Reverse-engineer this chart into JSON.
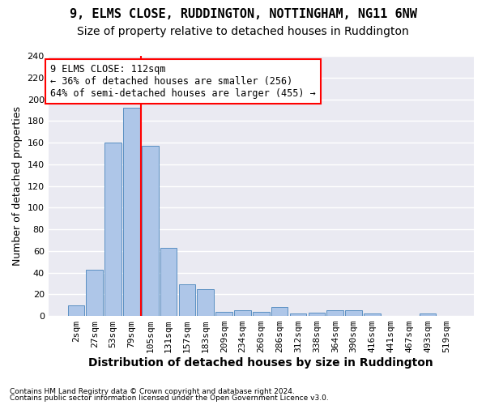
{
  "title1": "9, ELMS CLOSE, RUDDINGTON, NOTTINGHAM, NG11 6NW",
  "title2": "Size of property relative to detached houses in Ruddington",
  "xlabel": "Distribution of detached houses by size in Ruddington",
  "ylabel": "Number of detached properties",
  "footnote1": "Contains HM Land Registry data © Crown copyright and database right 2024.",
  "footnote2": "Contains public sector information licensed under the Open Government Licence v3.0.",
  "bar_labels": [
    "2sqm",
    "27sqm",
    "53sqm",
    "79sqm",
    "105sqm",
    "131sqm",
    "157sqm",
    "183sqm",
    "209sqm",
    "234sqm",
    "260sqm",
    "286sqm",
    "312sqm",
    "338sqm",
    "364sqm",
    "390sqm",
    "416sqm",
    "441sqm",
    "467sqm",
    "493sqm",
    "519sqm"
  ],
  "bar_values": [
    10,
    43,
    160,
    192,
    157,
    63,
    29,
    25,
    4,
    5,
    4,
    8,
    2,
    3,
    5,
    5,
    2,
    0,
    0,
    2,
    0
  ],
  "bar_color": "#aec6e8",
  "bar_edge_color": "#5a8fc2",
  "background_color": "#eaeaf2",
  "grid_color": "white",
  "annotation_line1": "9 ELMS CLOSE: 112sqm",
  "annotation_line2": "← 36% of detached houses are smaller (256)",
  "annotation_line3": "64% of semi-detached houses are larger (455) →",
  "vline_color": "red",
  "annotation_box_color": "white",
  "annotation_box_edge_color": "red",
  "ylim": [
    0,
    240
  ],
  "yticks": [
    0,
    20,
    40,
    60,
    80,
    100,
    120,
    140,
    160,
    180,
    200,
    220,
    240
  ],
  "title1_fontsize": 11,
  "title2_fontsize": 10,
  "xlabel_fontsize": 10,
  "ylabel_fontsize": 9,
  "tick_fontsize": 8,
  "annotation_fontsize": 8.5
}
